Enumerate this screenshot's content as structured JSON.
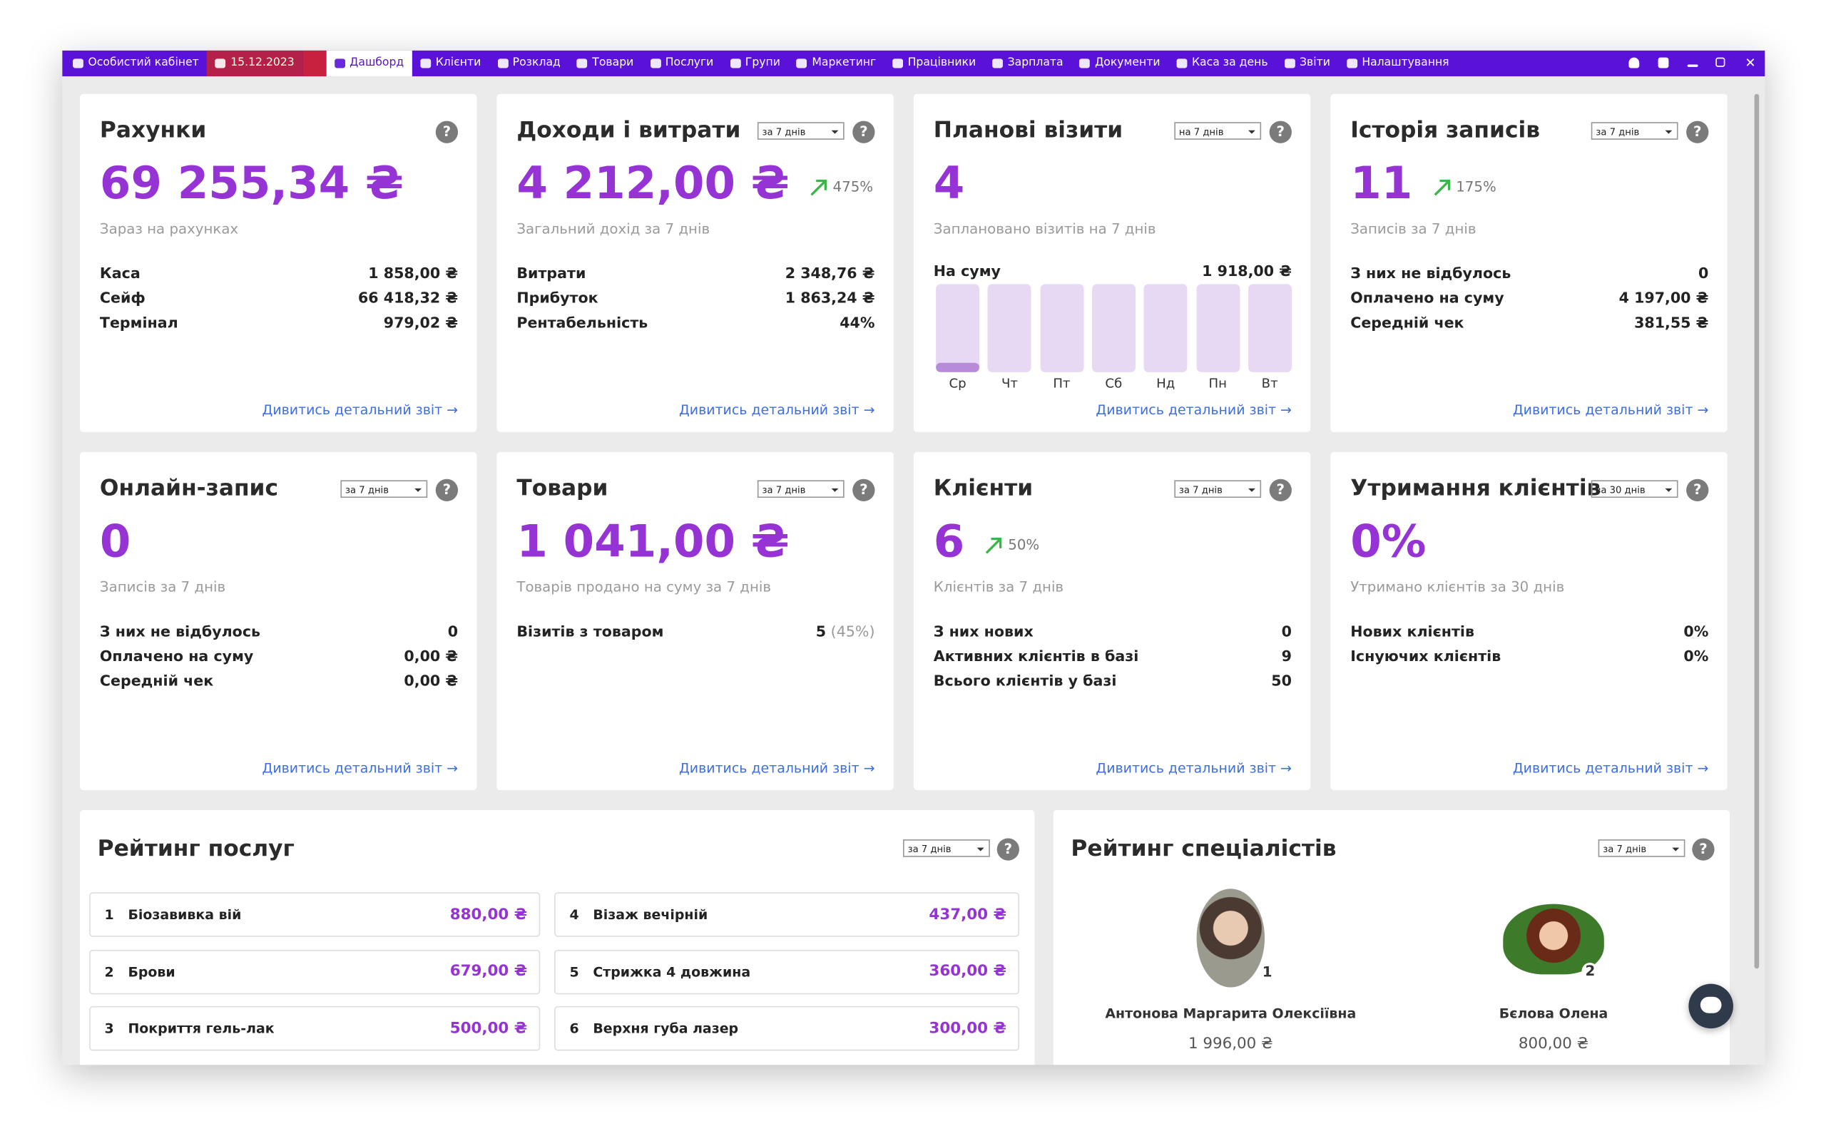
{
  "nav": {
    "items": [
      "Особистий кабінет",
      "15.12.2023",
      "Дашборд",
      "Клієнти",
      "Розклад",
      "Товари",
      "Послуги",
      "Групи",
      "Маркетинг",
      "Працівники",
      "Зарплата",
      "Документи",
      "Каса за день",
      "Звіти",
      "Налаштування"
    ]
  },
  "help": "?",
  "cards": [
    {
      "title": "Рахунки",
      "value": "69 255,34 ₴",
      "subtitle": "Зараз на рахунках",
      "rows": [
        [
          "Каса",
          "1 858,00 ₴"
        ],
        [
          "Сейф",
          "66 418,32 ₴"
        ],
        [
          "Термінал",
          "979,02 ₴"
        ]
      ],
      "link": "Дивитись детальний звіт →"
    },
    {
      "title": "Доходи і витрати",
      "period": "за 7 днів",
      "value": "4 212,00 ₴",
      "change": "475%",
      "subtitle": "Загальний дохід за 7 днів",
      "rows": [
        [
          "Витрати",
          "2 348,76 ₴"
        ],
        [
          "Прибуток",
          "1 863,24 ₴"
        ],
        [
          "Рентабельність",
          "44%"
        ]
      ],
      "link": "Дивитись детальний звіт →"
    },
    {
      "title": "Планові візити",
      "period": "на 7 днів",
      "value": "4",
      "subtitle": "Заплановано візитів на 7 днів",
      "rows": [
        [
          "На суму",
          "1 918,00 ₴"
        ]
      ],
      "days": [
        "Ср",
        "Чт",
        "Пт",
        "Сб",
        "Нд",
        "Пн",
        "Вт"
      ],
      "link": "Дивитись детальний звіт →"
    },
    {
      "title": "Історія записів",
      "period": "за 7 днів",
      "value": "11",
      "change": "175%",
      "subtitle": "Записів за 7 днів",
      "rows": [
        [
          "З них не відбулось",
          "0"
        ],
        [
          "Оплачено на суму",
          "4 197,00 ₴"
        ],
        [
          "Середній чек",
          "381,55 ₴"
        ]
      ],
      "link": "Дивитись детальний звіт →"
    },
    {
      "title": "Онлайн-запис",
      "period": "за 7 днів",
      "value": "0",
      "subtitle": "Записів за 7 днів",
      "rows": [
        [
          "З них не відбулось",
          "0"
        ],
        [
          "Оплачено на суму",
          "0,00 ₴"
        ],
        [
          "Середній чек",
          "0,00 ₴"
        ]
      ],
      "link": "Дивитись детальний звіт →"
    },
    {
      "title": "Товари",
      "period": "за 7 днів",
      "value": "1 041,00 ₴",
      "subtitle": "Товарів продано на суму за 7 днів",
      "rows": [
        [
          "Візитів з товаром",
          "5",
          "(45%)"
        ]
      ],
      "link": "Дивитись детальний звіт →"
    },
    {
      "title": "Клієнти",
      "period": "за 7 днів",
      "value": "6",
      "change": "50%",
      "subtitle": "Клієнтів за 7 днів",
      "rows": [
        [
          "З них нових",
          "0"
        ],
        [
          "Активних клієнтів в базі",
          "9"
        ],
        [
          "Всього клієнтів у базі",
          "50"
        ]
      ],
      "link": "Дивитись детальний звіт →"
    },
    {
      "title": "Утримання клієнтів",
      "period": "за 30 днів",
      "value": "0%",
      "subtitle": "Утримано клієнтів за 30 днів",
      "rows": [
        [
          "Нових клієнтів",
          "0%"
        ],
        [
          "Існуючих клієнтів",
          "0%"
        ]
      ],
      "link": "Дивитись детальний звіт →"
    }
  ],
  "services": {
    "title": "Рейтинг послуг",
    "period": "за 7 днів",
    "items": [
      {
        "rank": 1,
        "name": "Біозавивка вій",
        "value": "880,00 ₴"
      },
      {
        "rank": 2,
        "name": "Брови",
        "value": "679,00 ₴"
      },
      {
        "rank": 3,
        "name": "Покриття гель-лак",
        "value": "500,00 ₴"
      },
      {
        "rank": 4,
        "name": "Візаж вечірній",
        "value": "437,00 ₴"
      },
      {
        "rank": 5,
        "name": "Стрижка 4 довжина",
        "value": "360,00 ₴"
      },
      {
        "rank": 6,
        "name": "Верхня губа лазер",
        "value": "300,00 ₴"
      }
    ]
  },
  "specialists": {
    "title": "Рейтинг спеціалістів",
    "period": "за 7 днів",
    "items": [
      {
        "rank": 1,
        "name": "Антонова Маргарита Олексіївна",
        "value": "1 996,00 ₴"
      },
      {
        "rank": 2,
        "name": "Бєлова Олена",
        "value": "800,00 ₴"
      }
    ]
  }
}
